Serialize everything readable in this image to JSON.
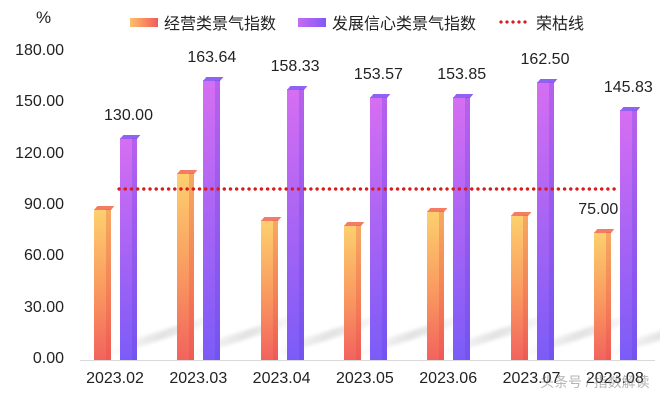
{
  "chart_data": {
    "type": "bar",
    "title": "",
    "xlabel": "",
    "ylabel": "%",
    "ylim": [
      0,
      180
    ],
    "yticks": [
      "0.00",
      "30.00",
      "60.00",
      "90.00",
      "120.00",
      "150.00",
      "180.00"
    ],
    "grid": false,
    "legend_position": "top",
    "categories": [
      "2023.02",
      "2023.03",
      "2023.04",
      "2023.05",
      "2023.06",
      "2023.07",
      "2023.08"
    ],
    "series": [
      {
        "name": "经营类景气指数",
        "color": "#f9825f",
        "values": [
          88,
          109,
          82,
          79,
          87,
          85,
          75.0
        ],
        "labels": [
          "",
          "",
          "",
          "",
          "",
          "",
          "75.00"
        ]
      },
      {
        "name": "发展信心类景气指数",
        "color": "#a060f5",
        "values": [
          130.0,
          163.64,
          158.33,
          153.57,
          153.85,
          162.5,
          145.83
        ],
        "labels": [
          "130.00",
          "163.64",
          "158.33",
          "153.57",
          "153.85",
          "162.50",
          "145.83"
        ]
      }
    ],
    "reference_lines": [
      {
        "name": "荣枯线",
        "value": 100,
        "color": "#d91c1c",
        "style": "dotted"
      }
    ]
  },
  "legend": {
    "items": [
      {
        "label": "经营类景气指数"
      },
      {
        "label": "发展信心类景气指数"
      },
      {
        "label": "荣枯线"
      }
    ]
  },
  "axis": {
    "unit": "%"
  },
  "watermark": "头条号 / 指数解读"
}
